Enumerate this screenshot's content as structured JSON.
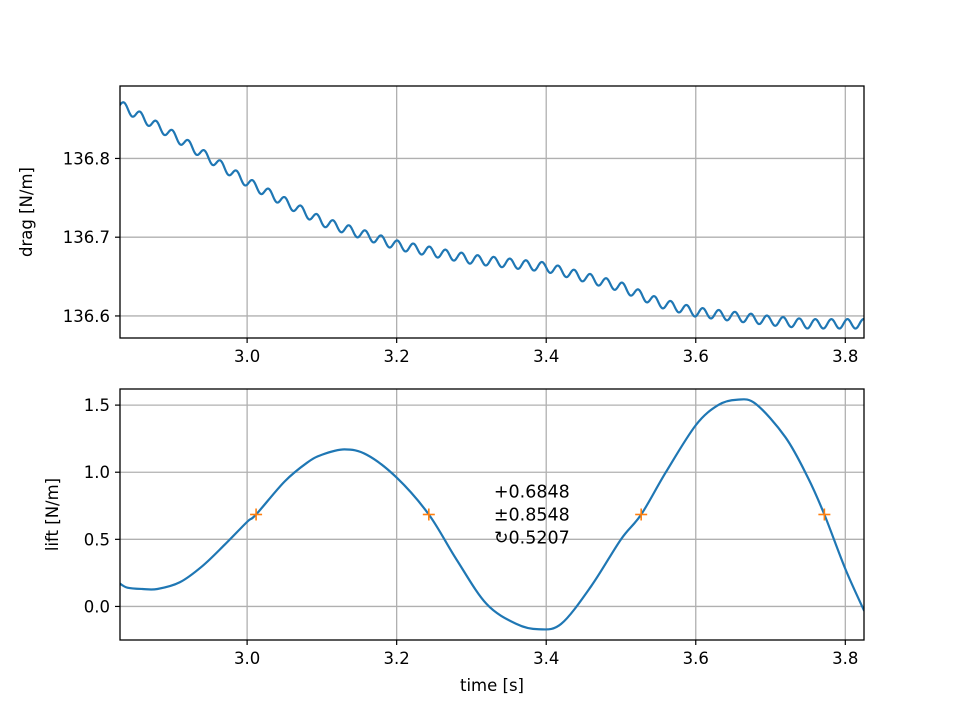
{
  "chart_data": [
    {
      "type": "line",
      "title": "",
      "xlabel": "",
      "ylabel": "drag [N/m]",
      "xlim": [
        2.83,
        3.825
      ],
      "ylim": [
        136.572,
        136.892
      ],
      "xticks": [
        3.0,
        3.2,
        3.4,
        3.6,
        3.8
      ],
      "xtick_labels": [
        "3.0",
        "3.2",
        "3.4",
        "3.6",
        "3.8"
      ],
      "yticks": [
        136.6,
        136.7,
        136.8
      ],
      "ytick_labels": [
        "136.6",
        "136.7",
        "136.8"
      ],
      "grid": true,
      "line_color": "#1f77b4",
      "series": [
        {
          "trend": {
            "x": [
              2.83,
              2.9,
              3.0,
              3.1,
              3.2,
              3.3,
              3.4,
              3.5,
              3.55,
              3.6,
              3.7,
              3.75,
              3.825
            ],
            "y": [
              136.868,
              136.83,
              136.77,
              136.72,
              136.69,
              136.672,
              136.662,
              136.637,
              136.617,
              136.605,
              136.594,
              136.59,
              136.59
            ]
          },
          "ripple_amplitude": 0.006,
          "ripple_period": 0.0215
        }
      ]
    },
    {
      "type": "line",
      "title": "",
      "xlabel": "time [s]",
      "ylabel": "lift [N/m]",
      "xlim": [
        2.83,
        3.825
      ],
      "ylim": [
        -0.25,
        1.62
      ],
      "xticks": [
        3.0,
        3.2,
        3.4,
        3.6,
        3.8
      ],
      "xtick_labels": [
        "3.0",
        "3.2",
        "3.4",
        "3.6",
        "3.8"
      ],
      "yticks": [
        0.0,
        0.5,
        1.0,
        1.5
      ],
      "ytick_labels": [
        "0.0",
        "0.5",
        "1.0",
        "1.5"
      ],
      "grid": true,
      "line_color": "#1f77b4",
      "marker_color": "#ff7f0e",
      "series": [
        {
          "x": [
            2.83,
            2.84,
            2.86,
            2.88,
            2.91,
            2.94,
            2.97,
            3.0,
            3.012,
            3.05,
            3.08,
            3.1,
            3.13,
            3.16,
            3.2,
            3.243,
            3.28,
            3.32,
            3.36,
            3.39,
            3.42,
            3.46,
            3.5,
            3.527,
            3.56,
            3.6,
            3.63,
            3.655,
            3.68,
            3.72,
            3.75,
            3.772,
            3.8,
            3.825
          ],
          "y": [
            0.17,
            0.14,
            0.13,
            0.13,
            0.18,
            0.3,
            0.46,
            0.63,
            0.685,
            0.93,
            1.07,
            1.13,
            1.17,
            1.13,
            0.96,
            0.685,
            0.35,
            0.02,
            -0.13,
            -0.17,
            -0.13,
            0.15,
            0.5,
            0.685,
            1.0,
            1.35,
            1.5,
            1.54,
            1.51,
            1.26,
            0.96,
            0.685,
            0.28,
            -0.03
          ]
        }
      ],
      "markers": {
        "x": [
          3.012,
          3.243,
          3.527,
          3.772
        ],
        "y": [
          0.685,
          0.685,
          0.685,
          0.685
        ]
      },
      "annotations": [
        "+0.6848",
        "±0.8548",
        "↻0.5207"
      ],
      "annotation_position": {
        "x": 3.33,
        "y": 0.81
      }
    }
  ]
}
